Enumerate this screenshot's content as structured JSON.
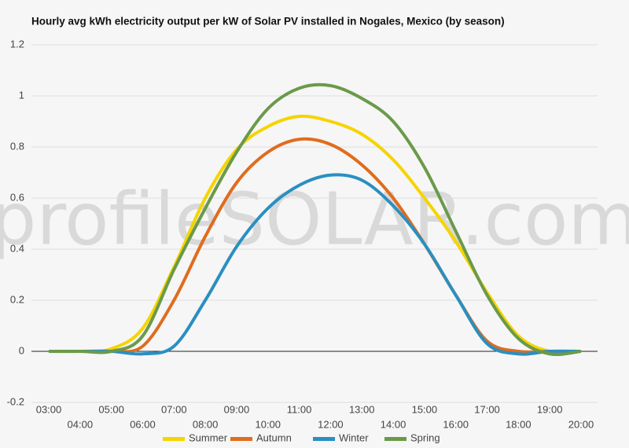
{
  "chart_data": {
    "type": "line",
    "title": "Hourly avg kWh electricity output per kW of Solar PV installed in Nogales, Mexico (by season)",
    "watermark": "profileSOLAR.com",
    "categories": [
      "03:00",
      "04:00",
      "05:00",
      "06:00",
      "07:00",
      "08:00",
      "09:00",
      "10:00",
      "11:00",
      "12:00",
      "13:00",
      "14:00",
      "15:00",
      "16:00",
      "17:00",
      "18:00",
      "19:00",
      "20:00"
    ],
    "series": [
      {
        "name": "Summer",
        "color": "#f5d400",
        "values": [
          0,
          0,
          0.01,
          0.09,
          0.33,
          0.6,
          0.79,
          0.88,
          0.92,
          0.9,
          0.85,
          0.75,
          0.6,
          0.43,
          0.23,
          0.06,
          0,
          0
        ]
      },
      {
        "name": "Autumn",
        "color": "#e06c1e",
        "values": [
          0,
          0,
          0,
          0.02,
          0.2,
          0.45,
          0.66,
          0.78,
          0.83,
          0.81,
          0.73,
          0.6,
          0.42,
          0.22,
          0.04,
          0,
          0,
          0
        ]
      },
      {
        "name": "Winter",
        "color": "#2a8fc1",
        "values": [
          0,
          0,
          0,
          -0.01,
          0.02,
          0.2,
          0.41,
          0.56,
          0.65,
          0.69,
          0.67,
          0.57,
          0.42,
          0.22,
          0.03,
          -0.01,
          0,
          0
        ]
      },
      {
        "name": "Spring",
        "color": "#6a9a4a",
        "values": [
          0,
          0,
          0,
          0.06,
          0.32,
          0.56,
          0.78,
          0.95,
          1.03,
          1.04,
          0.99,
          0.9,
          0.72,
          0.47,
          0.22,
          0.05,
          -0.01,
          0
        ]
      }
    ],
    "ylim": [
      -0.2,
      1.2
    ],
    "yticks": [
      -0.2,
      0,
      0.2,
      0.4,
      0.6,
      0.8,
      1.0,
      1.2
    ],
    "grid": true
  }
}
